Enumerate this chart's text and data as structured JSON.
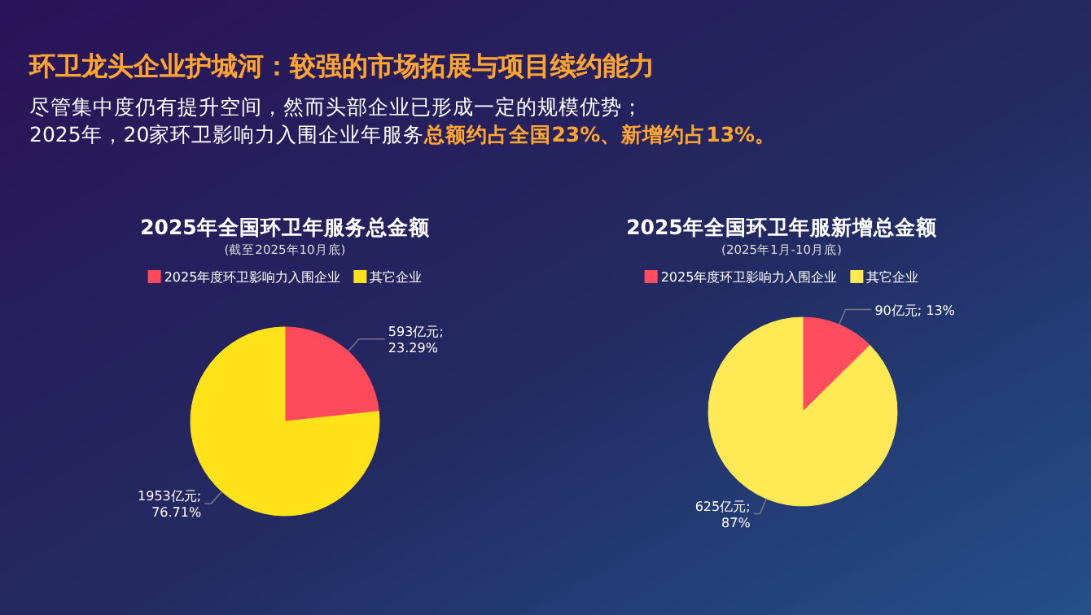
{
  "chart_data": [
    {
      "type": "other",
      "title": "环卫龙头企业护城河：较强的市场拓展与项目续约能力",
      "annotations": [
        "尽管集中度仍有提升空间，然而头部企业已形成一定的规模优势；",
        "2025年，20家环卫影响力入围企业年服务",
        "总额约占全国23%、新增约占13%。"
      ]
    },
    {
      "type": "pie",
      "title": "2025年全国环卫年服务总金额",
      "subtitle": "(截至2025年10月底)",
      "categories": [
        "2025年度环卫影响力入围企业",
        "其它企业"
      ],
      "values": [
        593,
        1953
      ],
      "colors": [
        "#ff4a5c",
        "#ffe21a"
      ],
      "value_labels": [
        "593亿元;\n23.29%",
        "1953亿元;\n76.71%"
      ],
      "legend": "top"
    },
    {
      "type": "pie",
      "title": "2025年全国环卫年服新增总金额",
      "subtitle": "(2025年1月-10月底)",
      "categories": [
        "2025年度环卫影响力入围企业",
        "其它企业"
      ],
      "values": [
        90,
        625
      ],
      "colors": [
        "#ff4d5f",
        "#ffea55"
      ],
      "value_labels": [
        "90亿元; 13%",
        "625亿元;\n87%"
      ],
      "legend": "top"
    }
  ]
}
